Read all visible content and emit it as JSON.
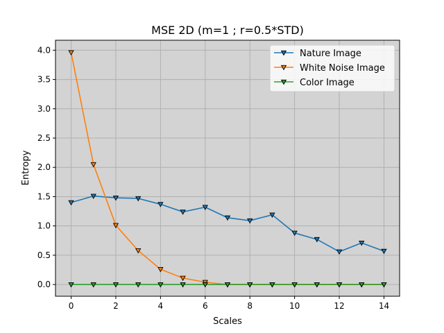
{
  "chart_data": {
    "type": "line",
    "title": "MSE 2D (m=1 ; r=0.5*STD)",
    "xlabel": "Scales",
    "ylabel": "Entropy",
    "x": [
      0,
      1,
      2,
      3,
      4,
      5,
      6,
      7,
      8,
      9,
      10,
      11,
      12,
      13,
      14
    ],
    "xlim": [
      -0.7,
      14.7
    ],
    "ylim": [
      -0.2,
      4.17
    ],
    "xticks": [
      0,
      2,
      4,
      6,
      8,
      10,
      12,
      14
    ],
    "xtick_labels": [
      "0",
      "2",
      "4",
      "6",
      "8",
      "10",
      "12",
      "14"
    ],
    "yticks": [
      0.0,
      0.5,
      1.0,
      1.5,
      2.0,
      2.5,
      3.0,
      3.5,
      4.0
    ],
    "ytick_labels": [
      "0.0",
      "0.5",
      "1.0",
      "1.5",
      "2.0",
      "2.5",
      "3.0",
      "3.5",
      "4.0"
    ],
    "grid": true,
    "background": "#d3d3d3",
    "grid_color": "#b0b0b0",
    "legend_position": "top-right",
    "series": [
      {
        "name": "Nature Image",
        "color": "#1f77b4",
        "values": [
          1.4,
          1.51,
          1.48,
          1.47,
          1.37,
          1.24,
          1.32,
          1.14,
          1.09,
          1.19,
          0.88,
          0.77,
          0.56,
          0.71,
          0.57
        ]
      },
      {
        "name": "White Noise Image",
        "color": "#ff7f0e",
        "values": [
          3.96,
          2.05,
          1.01,
          0.58,
          0.26,
          0.11,
          0.04,
          0.0,
          0.0,
          0.0,
          0.0,
          0.0,
          0.0,
          0.0,
          0.0
        ]
      },
      {
        "name": "Color Image",
        "color": "#2ca02c",
        "values": [
          0,
          0,
          0,
          0,
          0,
          0,
          0,
          0,
          0,
          0,
          0,
          0,
          0,
          0,
          0
        ]
      }
    ]
  }
}
